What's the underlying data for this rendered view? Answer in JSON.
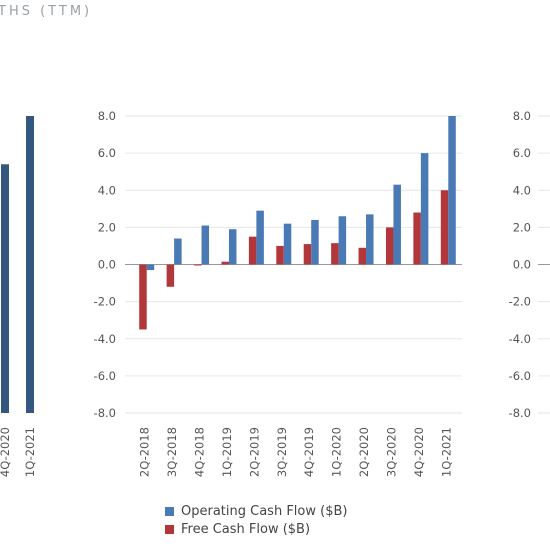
{
  "header": {
    "text": "THS (TTM)"
  },
  "colors": {
    "ocf": "#4a7ab5",
    "fcf": "#b2373a",
    "grid": "#e6e6e6",
    "axis": "#999999"
  },
  "chart_data": [
    {
      "type": "bar",
      "note": "partially visible chart cropped at left edge",
      "categories": [
        "4Q-2020",
        "1Q-2021"
      ],
      "series": [
        {
          "name": "",
          "values": [
            5.4,
            8.0
          ]
        }
      ]
    },
    {
      "type": "bar",
      "categories": [
        "2Q-2018",
        "3Q-2018",
        "4Q-2018",
        "1Q-2019",
        "2Q-2019",
        "3Q-2019",
        "4Q-2019",
        "1Q-2020",
        "2Q-2020",
        "3Q-2020",
        "4Q-2020",
        "1Q-2021"
      ],
      "series": [
        {
          "name": "Operating Cash Flow ($B)",
          "values": [
            -0.3,
            1.4,
            2.1,
            1.9,
            2.9,
            2.2,
            2.4,
            2.6,
            2.7,
            4.3,
            6.0,
            8.0
          ]
        },
        {
          "name": "Free Cash Flow ($B)",
          "values": [
            -3.5,
            -1.2,
            0.0,
            0.15,
            1.5,
            1.0,
            1.1,
            1.15,
            0.9,
            2.0,
            2.8,
            4.0
          ]
        }
      ],
      "yticks": [
        "8.0",
        "6.0",
        "4.0",
        "2.0",
        "0.0",
        "-2.0",
        "-4.0",
        "-6.0",
        "-8.0"
      ],
      "ylim": [
        -8,
        8
      ],
      "legend": [
        "Operating Cash Flow ($B)",
        "Free Cash Flow ($B)"
      ],
      "legend_position": "bottom"
    },
    {
      "type": "bar",
      "note": "partially visible chart cropped at right edge",
      "yticks": [
        "8.0",
        "6.0",
        "4.0",
        "2.0",
        "0.0",
        "-2.0",
        "-4.0",
        "-6.0",
        "-8.0"
      ],
      "ylim": [
        -8,
        8
      ]
    }
  ]
}
